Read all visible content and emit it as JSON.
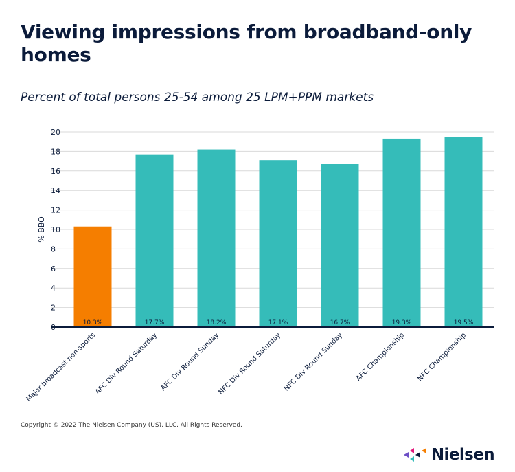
{
  "title": "Viewing impressions from broadband-only homes",
  "subtitle": "Percent of total persons 25-54 among 25 LPM+PPM markets",
  "footer": {
    "copyright": "Copyright © 2022 The Nielsen Company (US), LLC. All Rights Reserved.",
    "logo_text": "Nielsen"
  },
  "colors": {
    "highlight": "#F57E00",
    "bar": "#35BCB9",
    "text": "#0B1B3A",
    "grid": "#D9D9D9"
  },
  "chart_data": {
    "type": "bar",
    "title": "Viewing impressions from broadband-only homes",
    "subtitle": "Percent of total persons 25-54 among 25 LPM+PPM markets",
    "xlabel": "",
    "ylabel": "% BBO",
    "ylim": [
      0,
      20
    ],
    "yticks": [
      "0",
      "2",
      "4",
      "6",
      "8",
      "10",
      "12",
      "14",
      "16",
      "18",
      "20"
    ],
    "grid": true,
    "categories": [
      "Major broadcast non-sports",
      "AFC Div Round Saturday",
      "AFC Div Round Sunday",
      "NFC Div Round Saturday",
      "NFC Div Round Sunday",
      "AFC Championship",
      "NFC Championship"
    ],
    "values": [
      10.3,
      17.7,
      18.2,
      17.1,
      16.7,
      19.3,
      19.5
    ],
    "data_labels": [
      "10.3%",
      "17.7%",
      "18.2%",
      "17.1%",
      "16.7%",
      "19.3%",
      "19.5%"
    ],
    "bar_colors": [
      "#F57E00",
      "#35BCB9",
      "#35BCB9",
      "#35BCB9",
      "#35BCB9",
      "#35BCB9",
      "#35BCB9"
    ]
  }
}
